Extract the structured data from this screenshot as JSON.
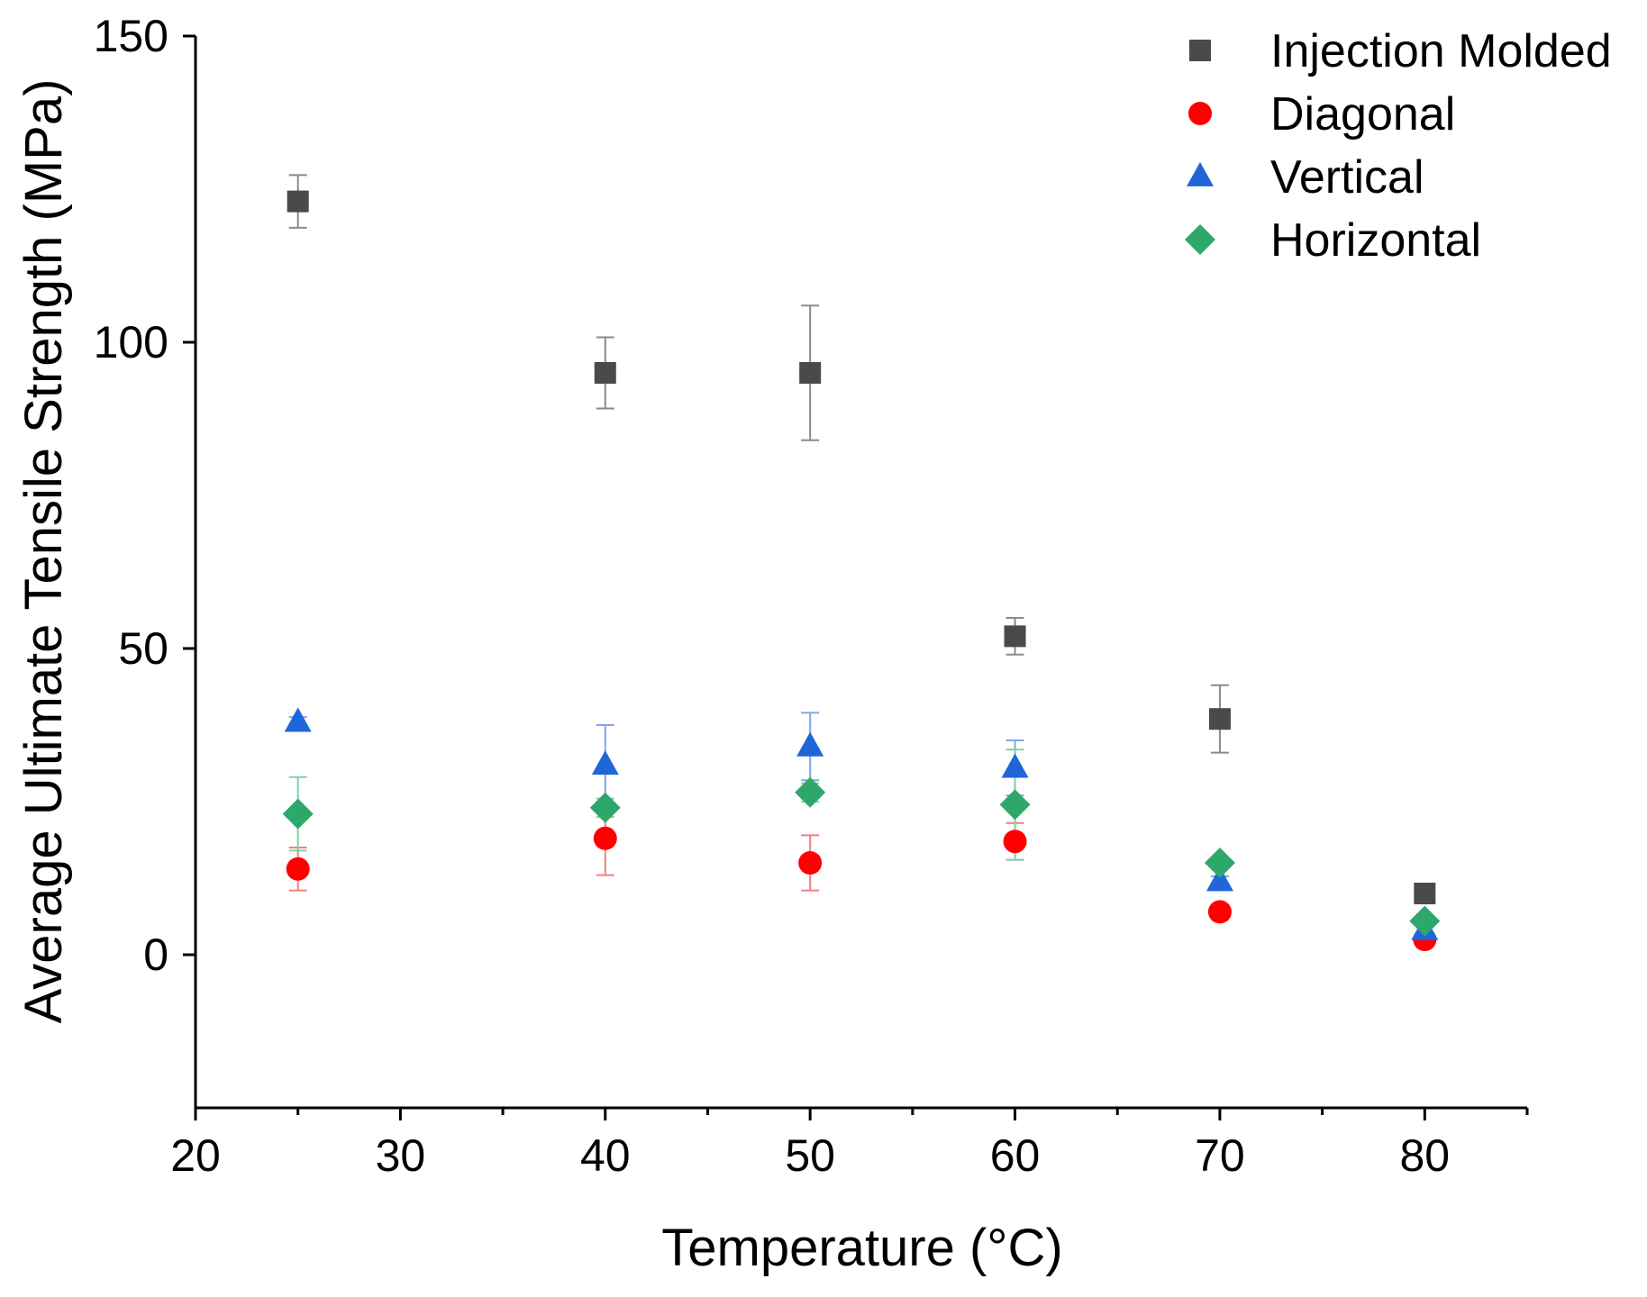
{
  "chart_data": {
    "type": "scatter",
    "title": "",
    "xlabel": "Temperature (°C)",
    "ylabel": "Average Ultimate Tensile Strength (MPa)",
    "xlim": [
      20,
      85
    ],
    "ylim": [
      -25,
      150
    ],
    "x_ticks": [
      20,
      30,
      40,
      50,
      60,
      70,
      80
    ],
    "x_tick_labels": [
      "20",
      "30",
      "40",
      "50",
      "60",
      "70",
      "80"
    ],
    "x_minor_ticks": [
      25,
      35,
      45,
      55,
      65,
      75,
      85
    ],
    "y_ticks": [
      0,
      50,
      100,
      150
    ],
    "y_tick_labels": [
      "0",
      "50",
      "100",
      "150"
    ],
    "grid": false,
    "legend_position": "top-right",
    "series": [
      {
        "name": "Injection Molded",
        "marker": "square",
        "color": "#4a4a4a",
        "error_color": "#8a8a8a",
        "points": [
          {
            "x": 25,
            "y": 123,
            "err": 4.3
          },
          {
            "x": 40,
            "y": 95,
            "err": 5.8
          },
          {
            "x": 50,
            "y": 95,
            "err": 11
          },
          {
            "x": 60,
            "y": 52,
            "err": 3
          },
          {
            "x": 70,
            "y": 38.5,
            "err": 5.5
          },
          {
            "x": 80,
            "y": 10,
            "err": 1.5
          }
        ]
      },
      {
        "name": "Diagonal",
        "marker": "circle",
        "color": "#ff0000",
        "error_color": "#f08080",
        "points": [
          {
            "x": 25,
            "y": 14,
            "err": 3.5
          },
          {
            "x": 40,
            "y": 19,
            "err": 6
          },
          {
            "x": 50,
            "y": 15,
            "err": 4.5
          },
          {
            "x": 60,
            "y": 18.5,
            "err": 3
          },
          {
            "x": 70,
            "y": 7,
            "err": 0.8
          },
          {
            "x": 80,
            "y": 2.5,
            "err": 0.8
          }
        ]
      },
      {
        "name": "Vertical",
        "marker": "triangle",
        "color": "#1f66d9",
        "error_color": "#7ea6e8",
        "points": [
          {
            "x": 25,
            "y": 38,
            "err": 0.8
          },
          {
            "x": 40,
            "y": 31,
            "err": 6.5
          },
          {
            "x": 50,
            "y": 34,
            "err": 5.5
          },
          {
            "x": 60,
            "y": 30.5,
            "err": 4.5
          },
          {
            "x": 70,
            "y": 12,
            "err": 0.8
          },
          {
            "x": 80,
            "y": 4,
            "err": 0.8
          }
        ]
      },
      {
        "name": "Horizontal",
        "marker": "diamond",
        "color": "#2ea86a",
        "error_color": "#84d1a6",
        "points": [
          {
            "x": 25,
            "y": 23,
            "err": 6
          },
          {
            "x": 40,
            "y": 24,
            "err": 1.5
          },
          {
            "x": 50,
            "y": 26.5,
            "err": 1.5
          },
          {
            "x": 60,
            "y": 24.5,
            "err": 9
          },
          {
            "x": 70,
            "y": 15,
            "err": 0.8
          },
          {
            "x": 80,
            "y": 5.5,
            "err": 0.8
          }
        ]
      }
    ]
  }
}
